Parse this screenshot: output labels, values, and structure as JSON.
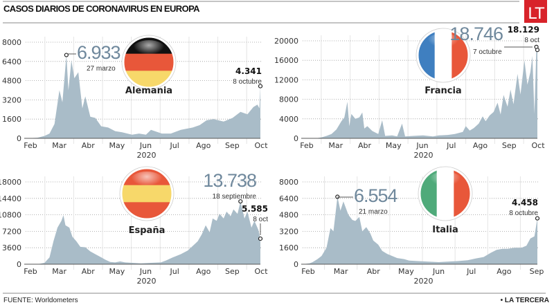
{
  "header": {
    "title": "CASOS DIARIOS DE CORONAVIRUS EN EUROPA",
    "logo": "LT",
    "logo_color": "#d8232a"
  },
  "footer": {
    "source": "FUENTE: Worldometers",
    "brand": "• LA TERCERA"
  },
  "colors": {
    "area": "#a9bcc8",
    "highlight": "#6f889c"
  },
  "chart_data": [
    {
      "type": "area",
      "country": "Alemania",
      "flag": [
        "#111111",
        "#e8573a",
        "#f7d86a"
      ],
      "flag_orientation": "horizontal",
      "xlabel": "2020",
      "months": [
        "Feb",
        "Mar",
        "Abr",
        "May",
        "Jun",
        "Jul",
        "Ago",
        "Sep",
        "Oct"
      ],
      "yticks": [
        "0",
        "1600",
        "3200",
        "4800",
        "6400",
        "8000"
      ],
      "ylim": [
        0,
        8000
      ],
      "grid": true,
      "peak": {
        "value_label": "6.933",
        "date_label": "27 marzo",
        "date": "2020-03-27",
        "value": 6933
      },
      "last": {
        "value_label": "4.341",
        "date_label": "8 octubre",
        "date": "2020-10-08",
        "value": 4341
      },
      "x": [
        "2020-02-15",
        "2020-02-27",
        "2020-03-05",
        "2020-03-10",
        "2020-03-15",
        "2020-03-20",
        "2020-03-23",
        "2020-03-27",
        "2020-03-29",
        "2020-04-01",
        "2020-04-04",
        "2020-04-08",
        "2020-04-12",
        "2020-04-15",
        "2020-04-20",
        "2020-04-25",
        "2020-05-01",
        "2020-05-08",
        "2020-05-15",
        "2020-05-22",
        "2020-06-01",
        "2020-06-08",
        "2020-06-15",
        "2020-06-20",
        "2020-07-01",
        "2020-07-10",
        "2020-07-20",
        "2020-08-01",
        "2020-08-08",
        "2020-08-15",
        "2020-08-22",
        "2020-09-01",
        "2020-09-10",
        "2020-09-18",
        "2020-09-25",
        "2020-10-01",
        "2020-10-05",
        "2020-10-07",
        "2020-10-08"
      ],
      "values": [
        0,
        50,
        200,
        400,
        1200,
        4000,
        3000,
        6933,
        4000,
        6500,
        5000,
        5500,
        2500,
        3500,
        1800,
        1700,
        1000,
        900,
        600,
        500,
        300,
        400,
        300,
        700,
        400,
        400,
        700,
        900,
        1100,
        1500,
        1600,
        1400,
        1700,
        2200,
        2000,
        2600,
        2800,
        2500,
        4341
      ]
    },
    {
      "type": "area",
      "country": "Francia",
      "flag": [
        "#3f7fc0",
        "#ffffff",
        "#e8573a"
      ],
      "flag_orientation": "vertical",
      "xlabel": "2020",
      "months": [
        "Feb",
        "Mar",
        "Abr",
        "May",
        "Jun",
        "Jul",
        "Ago",
        "Sep",
        "Oct"
      ],
      "yticks": [
        "0",
        "4000",
        "8000",
        "12000",
        "16000",
        "20000"
      ],
      "ylim": [
        0,
        20000
      ],
      "grid": true,
      "peak": {
        "value_label": "18.746",
        "date_label": "7 octubre",
        "date": "2020-10-07",
        "value": 18746
      },
      "last": {
        "value_label": "18.129",
        "date_label": "8 oct",
        "date": "2020-10-08",
        "value": 18129
      },
      "x": [
        "2020-02-15",
        "2020-02-28",
        "2020-03-05",
        "2020-03-10",
        "2020-03-15",
        "2020-03-20",
        "2020-03-25",
        "2020-03-28",
        "2020-03-31",
        "2020-04-02",
        "2020-04-04",
        "2020-04-08",
        "2020-04-12",
        "2020-04-15",
        "2020-04-17",
        "2020-04-20",
        "2020-04-25",
        "2020-05-01",
        "2020-05-05",
        "2020-05-08",
        "2020-05-15",
        "2020-05-20",
        "2020-05-25",
        "2020-05-28",
        "2020-06-05",
        "2020-06-15",
        "2020-06-25",
        "2020-07-01",
        "2020-07-10",
        "2020-07-17",
        "2020-07-25",
        "2020-07-28",
        "2020-08-01",
        "2020-08-05",
        "2020-08-10",
        "2020-08-14",
        "2020-08-17",
        "2020-08-21",
        "2020-08-25",
        "2020-08-29",
        "2020-09-01",
        "2020-09-04",
        "2020-09-08",
        "2020-09-11",
        "2020-09-14",
        "2020-09-18",
        "2020-09-21",
        "2020-09-25",
        "2020-09-28",
        "2020-10-01",
        "2020-10-03",
        "2020-10-05",
        "2020-10-07",
        "2020-10-08"
      ],
      "values": [
        0,
        0,
        200,
        500,
        900,
        1800,
        3500,
        4300,
        7500,
        2500,
        5000,
        4000,
        4300,
        5300,
        2000,
        2500,
        1500,
        900,
        3700,
        500,
        600,
        400,
        3000,
        400,
        500,
        600,
        400,
        600,
        700,
        900,
        1300,
        2500,
        1600,
        2100,
        3000,
        4500,
        3500,
        4700,
        5400,
        7300,
        4900,
        8900,
        6500,
        10000,
        7000,
        13200,
        9000,
        16000,
        11000,
        13600,
        16900,
        5000,
        18746,
        18129
      ]
    },
    {
      "type": "area",
      "country": "España",
      "flag": [
        "#e8573a",
        "#f7d86a",
        "#e8573a"
      ],
      "flag_orientation": "horizontal",
      "xlabel": "2020",
      "months": [
        "Feb",
        "Mar",
        "Abr",
        "May",
        "Jun",
        "Jul",
        "Ago",
        "Sep",
        "Oct"
      ],
      "yticks": [
        "0",
        "3600",
        "7200",
        "10800",
        "14400",
        "18000"
      ],
      "ylim": [
        0,
        18000
      ],
      "grid": true,
      "peak": {
        "value_label": "13.738",
        "date_label": "18 septiembre",
        "date": "2020-09-18",
        "value": 13738
      },
      "last": {
        "value_label": "5.585",
        "date_label": "8 oct",
        "date": "2020-10-08",
        "value": 5585
      },
      "x": [
        "2020-02-15",
        "2020-02-25",
        "2020-03-01",
        "2020-03-05",
        "2020-03-10",
        "2020-03-14",
        "2020-03-18",
        "2020-03-22",
        "2020-03-24",
        "2020-03-26",
        "2020-03-30",
        "2020-04-02",
        "2020-04-06",
        "2020-04-10",
        "2020-04-15",
        "2020-04-20",
        "2020-04-25",
        "2020-05-01",
        "2020-05-05",
        "2020-05-10",
        "2020-05-15",
        "2020-05-20",
        "2020-05-25",
        "2020-06-01",
        "2020-06-10",
        "2020-06-20",
        "2020-06-30",
        "2020-07-05",
        "2020-07-12",
        "2020-07-20",
        "2020-07-27",
        "2020-08-01",
        "2020-08-06",
        "2020-08-10",
        "2020-08-14",
        "2020-08-18",
        "2020-08-21",
        "2020-08-25",
        "2020-08-28",
        "2020-09-01",
        "2020-09-04",
        "2020-09-08",
        "2020-09-11",
        "2020-09-15",
        "2020-09-18",
        "2020-09-22",
        "2020-09-25",
        "2020-09-29",
        "2020-10-02",
        "2020-10-06",
        "2020-10-08"
      ],
      "values": [
        0,
        0,
        100,
        300,
        1500,
        5000,
        8000,
        9500,
        10700,
        8500,
        8000,
        6000,
        5000,
        3800,
        3700,
        2800,
        2200,
        1500,
        1000,
        500,
        400,
        600,
        400,
        300,
        200,
        300,
        400,
        800,
        1500,
        2200,
        3000,
        4000,
        5000,
        6500,
        8500,
        7000,
        10000,
        9500,
        11000,
        10000,
        11500,
        10500,
        12000,
        11000,
        13738,
        10000,
        11500,
        8000,
        9500,
        7500,
        5585
      ]
    },
    {
      "type": "area",
      "country": "Italia",
      "flag": [
        "#4faa7a",
        "#ffffff",
        "#e8573a"
      ],
      "flag_orientation": "vertical",
      "xlabel": "2020",
      "months": [
        "Feb",
        "Mar",
        "Abr",
        "May",
        "Jun",
        "Jul",
        "Ago",
        "Sep"
      ],
      "yticks": [
        "0",
        "1600",
        "3200",
        "4800",
        "6400",
        "8000"
      ],
      "ylim": [
        0,
        8000
      ],
      "grid": true,
      "peak": {
        "value_label": "6.554",
        "date_label": "21 marzo",
        "date": "2020-03-21",
        "value": 6554
      },
      "last": {
        "value_label": "4.458",
        "date_label": "8 octubre",
        "date": "2020-10-08",
        "value": 4458
      },
      "x": [
        "2020-02-15",
        "2020-02-22",
        "2020-02-25",
        "2020-03-01",
        "2020-03-05",
        "2020-03-10",
        "2020-03-14",
        "2020-03-17",
        "2020-03-21",
        "2020-03-24",
        "2020-03-27",
        "2020-04-01",
        "2020-04-05",
        "2020-04-08",
        "2020-04-12",
        "2020-04-15",
        "2020-04-19",
        "2020-04-23",
        "2020-04-26",
        "2020-05-01",
        "2020-05-05",
        "2020-05-10",
        "2020-05-15",
        "2020-05-20",
        "2020-05-27",
        "2020-06-01",
        "2020-06-10",
        "2020-06-20",
        "2020-07-01",
        "2020-07-10",
        "2020-07-20",
        "2020-07-30",
        "2020-08-07",
        "2020-08-15",
        "2020-08-22",
        "2020-08-28",
        "2020-09-03",
        "2020-09-08",
        "2020-09-15",
        "2020-09-22",
        "2020-09-27",
        "2020-10-01",
        "2020-10-05",
        "2020-10-08"
      ],
      "values": [
        0,
        80,
        200,
        500,
        800,
        1600,
        3500,
        3200,
        6554,
        5200,
        6100,
        4800,
        4300,
        4200,
        4600,
        3200,
        3600,
        3000,
        2300,
        1900,
        1300,
        1000,
        800,
        600,
        500,
        350,
        300,
        250,
        200,
        250,
        300,
        380,
        550,
        700,
        1100,
        1400,
        1500,
        1500,
        1600,
        1600,
        1800,
        2500,
        2700,
        4458
      ]
    }
  ]
}
